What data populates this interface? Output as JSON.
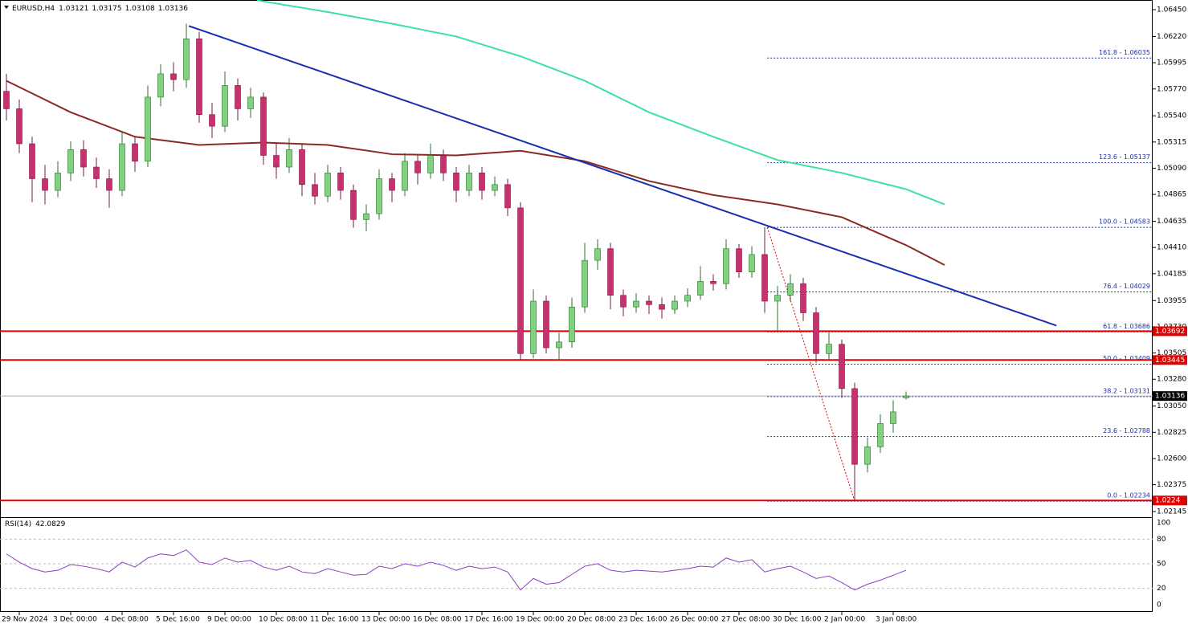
{
  "chart_data": {
    "type": "candlestick",
    "title": "EURUSD,H4",
    "categories": [
      null,
      "29 Nov 2024",
      null,
      null,
      null,
      "3 Dec 00:00",
      null,
      null,
      null,
      "4 Dec 08:00",
      null,
      null,
      null,
      "5 Dec 16:00",
      null,
      null,
      null,
      "9 Dec 00:00",
      null,
      null,
      null,
      "10 Dec 08:00",
      null,
      null,
      null,
      "11 Dec 16:00",
      null,
      null,
      null,
      "13 Dec 00:00",
      null,
      null,
      null,
      "16 Dec 08:00",
      null,
      null,
      null,
      "17 Dec 16:00",
      null,
      null,
      null,
      "19 Dec 00:00",
      null,
      null,
      null,
      "20 Dec 08:00",
      null,
      null,
      null,
      "23 Dec 16:00",
      null,
      null,
      null,
      "26 Dec 00:00",
      null,
      null,
      null,
      "27 Dec 08:00",
      null,
      null,
      null,
      "30 Dec 16:00",
      null,
      null,
      null,
      "2 Jan 00:00",
      null,
      null,
      null,
      "3 Jan 08:00",
      null
    ],
    "candles": [
      [
        1.0575,
        1.059,
        1.055,
        1.056
      ],
      [
        1.056,
        1.0568,
        1.0522,
        1.053
      ],
      [
        1.053,
        1.0536,
        1.048,
        1.05
      ],
      [
        1.05,
        1.0512,
        1.0478,
        1.049
      ],
      [
        1.049,
        1.0515,
        1.0484,
        1.0505
      ],
      [
        1.0505,
        1.0532,
        1.0498,
        1.0525
      ],
      [
        1.0525,
        1.0533,
        1.0502,
        1.051
      ],
      [
        1.051,
        1.0518,
        1.0492,
        1.05
      ],
      [
        1.05,
        1.0508,
        1.0475,
        1.049
      ],
      [
        1.049,
        1.054,
        1.0485,
        1.053
      ],
      [
        1.053,
        1.0536,
        1.0506,
        1.0515
      ],
      [
        1.0515,
        1.058,
        1.051,
        1.057
      ],
      [
        1.057,
        1.0598,
        1.0562,
        1.059
      ],
      [
        1.059,
        1.06,
        1.0575,
        1.0585
      ],
      [
        1.0585,
        1.0633,
        1.0578,
        1.062
      ],
      [
        1.062,
        1.0626,
        1.0548,
        1.0555
      ],
      [
        1.0555,
        1.0565,
        1.0535,
        1.0545
      ],
      [
        1.0545,
        1.0592,
        1.054,
        1.058
      ],
      [
        1.058,
        1.0586,
        1.055,
        1.056
      ],
      [
        1.056,
        1.0578,
        1.0552,
        1.057
      ],
      [
        1.057,
        1.0574,
        1.0512,
        1.052
      ],
      [
        1.052,
        1.053,
        1.05,
        1.051
      ],
      [
        1.051,
        1.0535,
        1.0505,
        1.0525
      ],
      [
        1.0525,
        1.053,
        1.0485,
        1.0495
      ],
      [
        1.0495,
        1.0505,
        1.0478,
        1.0485
      ],
      [
        1.0485,
        1.0512,
        1.048,
        1.0505
      ],
      [
        1.0505,
        1.051,
        1.0482,
        1.049
      ],
      [
        1.049,
        1.0495,
        1.0458,
        1.0465
      ],
      [
        1.0465,
        1.0478,
        1.0455,
        1.047
      ],
      [
        1.047,
        1.0508,
        1.0465,
        1.05
      ],
      [
        1.05,
        1.0505,
        1.048,
        1.049
      ],
      [
        1.049,
        1.0522,
        1.0485,
        1.0515
      ],
      [
        1.0515,
        1.052,
        1.0495,
        1.0505
      ],
      [
        1.0505,
        1.053,
        1.05,
        1.052
      ],
      [
        1.052,
        1.0525,
        1.0498,
        1.0505
      ],
      [
        1.0505,
        1.051,
        1.048,
        1.049
      ],
      [
        1.049,
        1.0512,
        1.0485,
        1.0505
      ],
      [
        1.0505,
        1.051,
        1.0482,
        1.049
      ],
      [
        1.049,
        1.0502,
        1.0485,
        1.0495
      ],
      [
        1.0495,
        1.05,
        1.0468,
        1.0475
      ],
      [
        1.0475,
        1.048,
        1.0344,
        1.035
      ],
      [
        1.035,
        1.0405,
        1.0346,
        1.0395
      ],
      [
        1.0395,
        1.04,
        1.035,
        1.0355
      ],
      [
        1.0355,
        1.0368,
        1.0344,
        1.036
      ],
      [
        1.036,
        1.0398,
        1.0355,
        1.039
      ],
      [
        1.039,
        1.0445,
        1.0385,
        1.043
      ],
      [
        1.043,
        1.0448,
        1.0422,
        1.044
      ],
      [
        1.044,
        1.0445,
        1.0388,
        1.04
      ],
      [
        1.04,
        1.0405,
        1.0382,
        1.039
      ],
      [
        1.039,
        1.0402,
        1.0385,
        1.0395
      ],
      [
        1.0395,
        1.04,
        1.0384,
        1.0392
      ],
      [
        1.0392,
        1.0398,
        1.038,
        1.0388
      ],
      [
        1.0388,
        1.04,
        1.0384,
        1.0395
      ],
      [
        1.0395,
        1.0406,
        1.039,
        1.04
      ],
      [
        1.04,
        1.0425,
        1.0396,
        1.0412
      ],
      [
        1.0412,
        1.0418,
        1.0404,
        1.041
      ],
      [
        1.041,
        1.0448,
        1.0405,
        1.044
      ],
      [
        1.044,
        1.0444,
        1.0415,
        1.042
      ],
      [
        1.042,
        1.0442,
        1.0415,
        1.0435
      ],
      [
        1.0435,
        1.04583,
        1.0385,
        1.0395
      ],
      [
        1.0395,
        1.0408,
        1.037,
        1.04
      ],
      [
        1.04,
        1.0418,
        1.0395,
        1.041
      ],
      [
        1.041,
        1.0415,
        1.0378,
        1.0385
      ],
      [
        1.0385,
        1.039,
        1.0342,
        1.035
      ],
      [
        1.035,
        1.0368,
        1.0345,
        1.0358
      ],
      [
        1.0358,
        1.0362,
        1.0312,
        1.032
      ],
      [
        1.032,
        1.0325,
        1.02234,
        1.0255
      ],
      [
        1.0255,
        1.0278,
        1.0248,
        1.027
      ],
      [
        1.027,
        1.0298,
        1.0265,
        1.029
      ],
      [
        1.029,
        1.031,
        1.0282,
        1.03
      ],
      [
        1.03121,
        1.03175,
        1.03108,
        1.03136
      ]
    ],
    "up_color": "#7fd17f",
    "up_edge": "#2f6f2f",
    "down_color": "#c8306e",
    "down_edge": "#7a1a40",
    "ylim": [
      1.0209,
      1.06533
    ],
    "yticks": [
      {
        "value": 1.0645,
        "label": "1.06450"
      },
      {
        "value": 1.0622,
        "label": "1.06220"
      },
      {
        "value": 1.05995,
        "label": "1.05995"
      },
      {
        "value": 1.0577,
        "label": "1.05770"
      },
      {
        "value": 1.0554,
        "label": "1.05540"
      },
      {
        "value": 1.05315,
        "label": "1.05315"
      },
      {
        "value": 1.0509,
        "label": "1.05090"
      },
      {
        "value": 1.04865,
        "label": "1.04865"
      },
      {
        "value": 1.04635,
        "label": "1.04635"
      },
      {
        "value": 1.0441,
        "label": "1.04410"
      },
      {
        "value": 1.04185,
        "label": "1.04185"
      },
      {
        "value": 1.03955,
        "label": "1.03955"
      },
      {
        "value": 1.0373,
        "label": "1.03730"
      },
      {
        "value": 1.03505,
        "label": "1.03505"
      },
      {
        "value": 1.0328,
        "label": "1.03280"
      },
      {
        "value": 1.0305,
        "label": "1.03050"
      },
      {
        "value": 1.02825,
        "label": "1.02825"
      },
      {
        "value": 1.026,
        "label": "1.02600"
      },
      {
        "value": 1.02375,
        "label": "1.02375"
      },
      {
        "value": 1.02145,
        "label": "1.02145"
      }
    ],
    "overlays": [
      {
        "color": "#8b2a22",
        "x": [
          0,
          5,
          10,
          15,
          20,
          25,
          30,
          35,
          40,
          45,
          50,
          55,
          60,
          65,
          70,
          73
        ],
        "values": [
          1.0584,
          1.0557,
          1.0536,
          1.0529,
          1.0531,
          1.0529,
          1.0521,
          1.052,
          1.0524,
          1.0515,
          1.0498,
          1.0486,
          1.0478,
          1.0467,
          1.0443,
          1.0426
        ]
      },
      {
        "color": "#3ee0a0",
        "x": [
          19.5,
          25,
          30,
          35,
          40,
          45,
          50,
          55,
          60,
          65,
          70,
          73
        ],
        "values": [
          1.0653,
          1.0643,
          1.0633,
          1.0622,
          1.0605,
          1.0584,
          1.0557,
          1.0536,
          1.0516,
          1.0505,
          1.0491,
          1.0478
        ]
      },
      {
        "color": "#1a2fb0",
        "x": [
          14.2,
          81.7
        ],
        "values": [
          1.0631,
          1.0374
        ]
      }
    ],
    "hlines": [
      {
        "value": 1.03692,
        "color": "#e00000"
      },
      {
        "value": 1.03445,
        "color": "#e00000"
      },
      {
        "value": 1.0224,
        "color": "#e00000"
      }
    ],
    "fib_levels": [
      {
        "label": "161.8 - 1.06035",
        "value": 1.06035
      },
      {
        "label": "123.6 - 1.05137",
        "value": 1.05137
      },
      {
        "label": "100.0 - 1.04583",
        "value": 1.04583
      },
      {
        "label": "76.4 - 1.04029",
        "value": 1.04029
      },
      {
        "label": "61.8 - 1.03686",
        "value": 1.03686
      },
      {
        "label": "50.0 - 1.03409",
        "value": 1.03409
      },
      {
        "label": "38.2 - 1.03131",
        "value": 1.03131
      },
      {
        "label": "23.6 - 1.02788",
        "value": 1.02788
      },
      {
        "label": "0.0 - 1.02234",
        "value": 1.02234
      }
    ],
    "fib_color": "#1a2fb0",
    "rsi": {
      "title": "RSI(14)",
      "color": "#8a3fc0",
      "ylim": [
        0,
        100
      ],
      "yticks": [
        0,
        20,
        50,
        80,
        100
      ],
      "values": [
        62,
        52,
        44,
        40,
        42,
        49,
        47,
        44,
        40,
        52,
        46,
        57,
        62,
        60,
        67,
        52,
        49,
        57,
        52,
        54,
        46,
        42,
        47,
        40,
        38,
        44,
        40,
        36,
        37,
        47,
        44,
        50,
        47,
        52,
        48,
        42,
        47,
        44,
        46,
        40,
        18,
        32,
        25,
        27,
        37,
        47,
        50,
        42,
        40,
        42,
        41,
        40,
        42,
        44,
        47,
        46,
        57,
        52,
        55,
        40,
        44,
        47,
        40,
        32,
        35,
        27,
        18,
        25,
        30,
        36,
        42.0829
      ]
    }
  }
}
